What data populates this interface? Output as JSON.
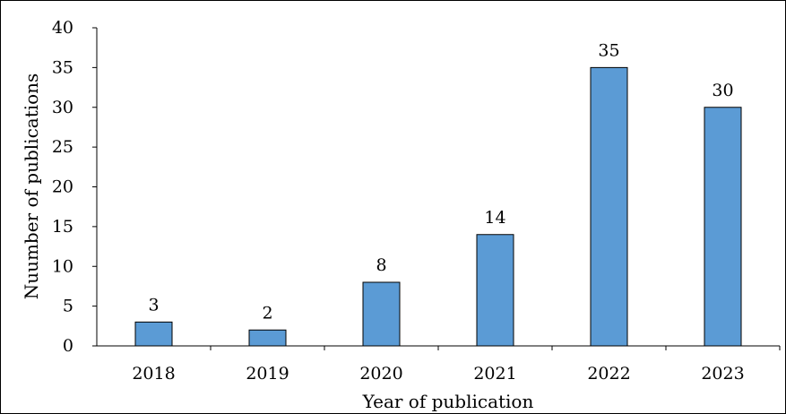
{
  "chart_data": {
    "type": "bar",
    "title": "",
    "categories": [
      "2018",
      "2019",
      "2020",
      "2021",
      "2022",
      "2023"
    ],
    "values": [
      3,
      2,
      8,
      14,
      35,
      30
    ],
    "data_labels": [
      "3",
      "2",
      "8",
      "14",
      "35",
      "30"
    ],
    "xlabel": "Year of publication",
    "ylabel": "Nuumber of publications",
    "ylim": [
      0,
      40
    ],
    "yticks": [
      "0",
      "5",
      "10",
      "15",
      "20",
      "25",
      "30",
      "35",
      "40"
    ],
    "grid": false,
    "legend": "none",
    "bar_color": "#5B9BD5",
    "bar_edge_color": "#000000"
  }
}
